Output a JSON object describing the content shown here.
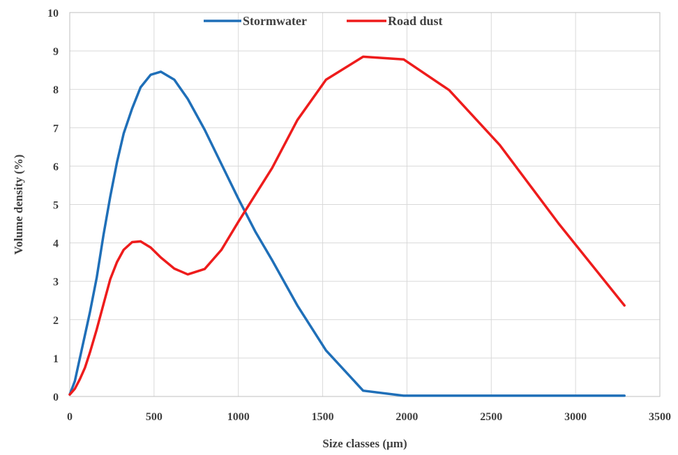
{
  "chart_data": {
    "type": "line",
    "title": "",
    "xlabel": "Size classes (µm)",
    "ylabel": "Volume density (%)",
    "xlim": [
      0,
      3500
    ],
    "ylim": [
      0,
      10
    ],
    "xticks": [
      0,
      500,
      1000,
      1500,
      2000,
      2500,
      3000,
      3500
    ],
    "yticks": [
      0,
      1,
      2,
      3,
      4,
      5,
      6,
      7,
      8,
      9,
      10
    ],
    "grid": true,
    "legend_position": "top-center",
    "series": [
      {
        "name": "Stormwater",
        "color": "#1f6fb8",
        "x": [
          0,
          30,
          60,
          90,
          120,
          160,
          200,
          240,
          280,
          320,
          370,
          420,
          480,
          540,
          620,
          700,
          800,
          900,
          1000,
          1100,
          1200,
          1350,
          1520,
          1740,
          1980,
          2250,
          2550,
          2900,
          3290
        ],
        "y": [
          0.05,
          0.4,
          1.0,
          1.6,
          2.2,
          3.1,
          4.2,
          5.2,
          6.1,
          6.85,
          7.5,
          8.05,
          8.38,
          8.46,
          8.25,
          7.75,
          6.95,
          6.05,
          5.15,
          4.3,
          3.55,
          2.37,
          1.2,
          0.15,
          0.02,
          0.02,
          0.02,
          0.02,
          0.02
        ]
      },
      {
        "name": "Road dust",
        "color": "#ee1c1c",
        "x": [
          0,
          30,
          60,
          90,
          120,
          160,
          200,
          240,
          280,
          320,
          370,
          420,
          480,
          540,
          620,
          700,
          800,
          900,
          1000,
          1100,
          1200,
          1350,
          1520,
          1740,
          1980,
          2250,
          2550,
          2900,
          3290
        ],
        "y": [
          0.05,
          0.2,
          0.45,
          0.75,
          1.15,
          1.75,
          2.4,
          3.05,
          3.5,
          3.82,
          4.02,
          4.04,
          3.88,
          3.62,
          3.33,
          3.18,
          3.32,
          3.82,
          4.55,
          5.25,
          5.95,
          7.2,
          8.25,
          8.85,
          8.78,
          7.98,
          6.55,
          4.5,
          2.37
        ]
      }
    ]
  }
}
